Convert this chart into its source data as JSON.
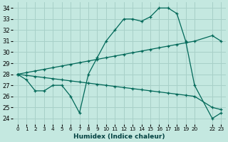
{
  "xlabel": "Humidex (Indice chaleur)",
  "bg_color": "#c4e8e0",
  "grid_color": "#a8d0c8",
  "line_color": "#006858",
  "xlim": [
    -0.5,
    23.5
  ],
  "ylim": [
    23.5,
    34.5
  ],
  "yticks": [
    24,
    25,
    26,
    27,
    28,
    29,
    30,
    31,
    32,
    33,
    34
  ],
  "xticks": [
    0,
    1,
    2,
    3,
    4,
    5,
    6,
    7,
    8,
    9,
    10,
    11,
    12,
    13,
    14,
    15,
    16,
    17,
    18,
    19,
    20,
    22,
    23
  ],
  "xtick_labels": [
    "0",
    "1",
    "2",
    "3",
    "4",
    "5",
    "6",
    "7",
    "8",
    "9",
    "10",
    "11",
    "12",
    "13",
    "14",
    "15",
    "16",
    "17",
    "18",
    "19",
    "20",
    "22",
    "23"
  ],
  "line1_x": [
    0,
    1,
    2,
    3,
    4,
    5,
    6,
    7,
    8,
    9,
    10,
    11,
    12,
    13,
    14,
    15,
    16,
    17,
    18,
    19,
    20,
    22,
    23
  ],
  "line1_y": [
    28.0,
    27.5,
    26.5,
    26.5,
    27.0,
    27.0,
    26.0,
    24.5,
    28.0,
    29.5,
    31.0,
    32.0,
    33.0,
    33.0,
    32.8,
    33.2,
    34.0,
    34.0,
    33.5,
    31.0,
    27.0,
    24.0,
    24.5
  ],
  "line2_x": [
    0,
    1,
    2,
    3,
    4,
    5,
    6,
    7,
    8,
    9,
    10,
    11,
    12,
    13,
    14,
    15,
    16,
    17,
    18,
    19,
    20,
    22,
    23
  ],
  "line2_y": [
    28.0,
    28.15,
    28.3,
    28.45,
    28.6,
    28.75,
    28.9,
    29.05,
    29.2,
    29.35,
    29.5,
    29.65,
    29.8,
    29.95,
    30.1,
    30.25,
    30.4,
    30.55,
    30.7,
    30.85,
    31.0,
    31.5,
    31.0
  ],
  "line3_x": [
    0,
    1,
    2,
    3,
    4,
    5,
    6,
    7,
    8,
    9,
    10,
    11,
    12,
    13,
    14,
    15,
    16,
    17,
    18,
    19,
    20,
    22,
    23
  ],
  "line3_y": [
    28.0,
    27.9,
    27.8,
    27.7,
    27.6,
    27.5,
    27.4,
    27.3,
    27.2,
    27.1,
    27.0,
    26.9,
    26.8,
    26.7,
    26.6,
    26.5,
    26.4,
    26.3,
    26.2,
    26.1,
    26.0,
    25.0,
    24.8
  ]
}
